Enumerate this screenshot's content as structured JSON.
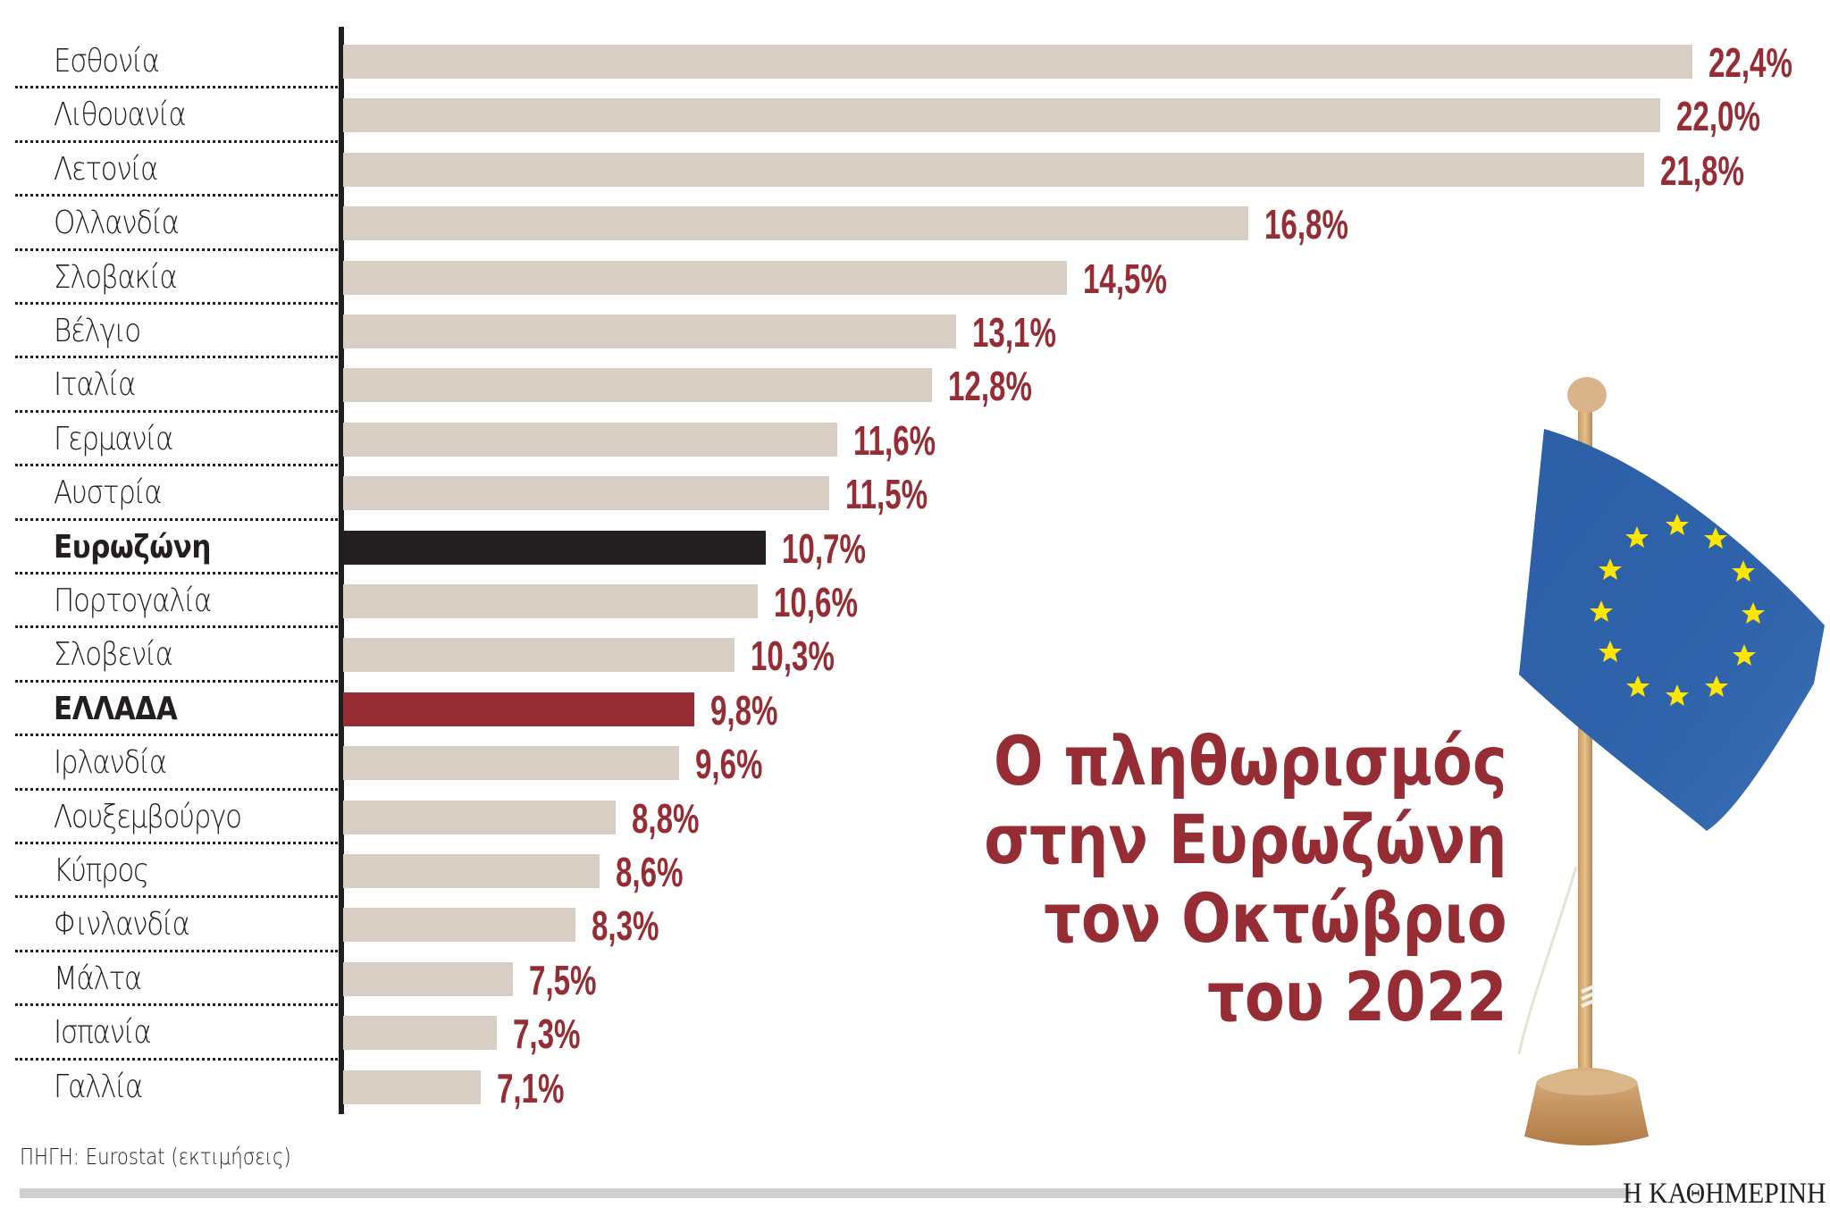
{
  "chart_data": {
    "type": "bar",
    "orientation": "horizontal",
    "title": "Ο πληθωρισμός στην Ευρωζώνη τον Οκτώβριο του 2022",
    "title_lines": [
      "Ο πληθωρισμός",
      "στην Ευρωζώνη",
      "τον Οκτώβριο",
      "του 2022"
    ],
    "xlabel": "",
    "ylabel": "",
    "unit": "%",
    "grid": false,
    "legend": null,
    "categories": [
      "Εσθονία",
      "Λιθουανία",
      "Λετονία",
      "Ολλανδία",
      "Σλοβακία",
      "Βέλγιο",
      "Ιταλία",
      "Γερμανία",
      "Αυστρία",
      "Ευρωζώνη",
      "Πορτογαλία",
      "Σλοβενία",
      "ΕΛΛΑΔΑ",
      "Ιρλανδία",
      "Λουξεμβούργο",
      "Κύπρος",
      "Φινλανδία",
      "Μάλτα",
      "Ισπανία",
      "Γαλλία"
    ],
    "values": [
      22.4,
      22.0,
      21.8,
      16.8,
      14.5,
      13.1,
      12.8,
      11.6,
      11.5,
      10.7,
      10.6,
      10.3,
      9.8,
      9.6,
      8.8,
      8.6,
      8.3,
      7.5,
      7.3,
      7.1
    ],
    "value_labels": [
      "22,4%",
      "22,0%",
      "21,8%",
      "16,8%",
      "14,5%",
      "13,1%",
      "12,8%",
      "11,6%",
      "11,5%",
      "10,7%",
      "10,6%",
      "10,3%",
      "9,8%",
      "9,6%",
      "8,8%",
      "8,6%",
      "8,3%",
      "7,5%",
      "7,3%",
      "7,1%"
    ],
    "highlights": {
      "Ευρωζώνη": "#231f20",
      "ΕΛΛΑΔΑ": "#962d34"
    },
    "source": "ΠΗΓΗ: Eurostat (εκτιμήσεις)"
  },
  "colors": {
    "bar_default": "#d9cec3",
    "bar_eurozone": "#231f20",
    "bar_greece": "#962d34",
    "value_text": "#962d34",
    "title_text": "#962d34",
    "flag_blue": "#2f62a8",
    "flag_star": "#ffe600"
  },
  "rows": [
    {
      "label": "Εσθονία",
      "value": "22,4%",
      "bold": false
    },
    {
      "label": "Λιθουανία",
      "value": "22,0%",
      "bold": false
    },
    {
      "label": "Λετονία",
      "value": "21,8%",
      "bold": false
    },
    {
      "label": "Ολλανδία",
      "value": "16,8%",
      "bold": false
    },
    {
      "label": "Σλοβακία",
      "value": "14,5%",
      "bold": false
    },
    {
      "label": "Βέλγιο",
      "value": "13,1%",
      "bold": false
    },
    {
      "label": "Ιταλία",
      "value": "12,8%",
      "bold": false
    },
    {
      "label": "Γερμανία",
      "value": "11,6%",
      "bold": false
    },
    {
      "label": "Αυστρία",
      "value": "11,5%",
      "bold": false
    },
    {
      "label": "Ευρωζώνη",
      "value": "10,7%",
      "bold": true
    },
    {
      "label": "Πορτογαλία",
      "value": "10,6%",
      "bold": false
    },
    {
      "label": "Σλοβενία",
      "value": "10,3%",
      "bold": false
    },
    {
      "label": "ΕΛΛΑΔΑ",
      "value": "9,8%",
      "bold": true
    },
    {
      "label": "Ιρλανδία",
      "value": "9,6%",
      "bold": false
    },
    {
      "label": "Λουξεμβούργο",
      "value": "8,8%",
      "bold": false
    },
    {
      "label": "Κύπρος",
      "value": "8,6%",
      "bold": false
    },
    {
      "label": "Φινλανδία",
      "value": "8,3%",
      "bold": false
    },
    {
      "label": "Μάλτα",
      "value": "7,5%",
      "bold": false
    },
    {
      "label": "Ισπανία",
      "value": "7,3%",
      "bold": false
    },
    {
      "label": "Γαλλία",
      "value": "7,1%",
      "bold": false
    }
  ],
  "title": {
    "line1": "Ο πληθωρισμός",
    "line2": "στην Ευρωζώνη",
    "line3": "τον Οκτώβριο",
    "line4": "του 2022"
  },
  "footer": {
    "source": "ΠΗΓΗ: Eurostat (εκτιμήσεις)",
    "brand": "Η ΚΑΘΗΜΕΡΙΝΗ"
  },
  "illustration": {
    "icon": "eu-flag-icon",
    "description": "Small EU table flag on wooden stand"
  }
}
